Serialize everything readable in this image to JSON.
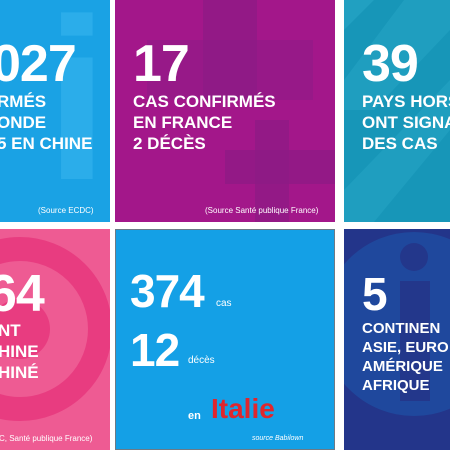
{
  "colors": {
    "cyan": "#1aa2e4",
    "magenta": "#a3178a",
    "teal": "#1796b8",
    "pink": "#ee5b93",
    "blue": "#14a0e6",
    "navy": "#23358a",
    "italy_red": "#e0262d"
  },
  "tile1": {
    "number": "027",
    "lines": [
      "RMÉS",
      "ONDE",
      "5 EN CHINE"
    ],
    "source": "(Source ECDC)"
  },
  "tile2": {
    "number": "17",
    "lines": [
      "CAS CONFIRMÉS",
      "EN FRANCE",
      "2 DÉCÈS"
    ],
    "source": "(Source Santé publique France)"
  },
  "tile3": {
    "number": "39",
    "lines": [
      "PAYS HORS",
      "ONT SIGNA",
      "DES CAS"
    ]
  },
  "tile4": {
    "number": "64",
    "lines": [
      "NT",
      "HINE",
      "HINÉ"
    ],
    "source": "C, Santé publique France)"
  },
  "tile5": {
    "cases_number": "374",
    "cases_unit": "cas",
    "deaths_number": "12",
    "deaths_unit": "décès",
    "prefix": "en",
    "country": "Italie",
    "source": "source Babilown"
  },
  "tile6": {
    "number": "5",
    "lines": [
      "CONTINEN",
      "ASIE, EURO",
      "AMÉRIQUE",
      "AFRIQUE"
    ]
  }
}
